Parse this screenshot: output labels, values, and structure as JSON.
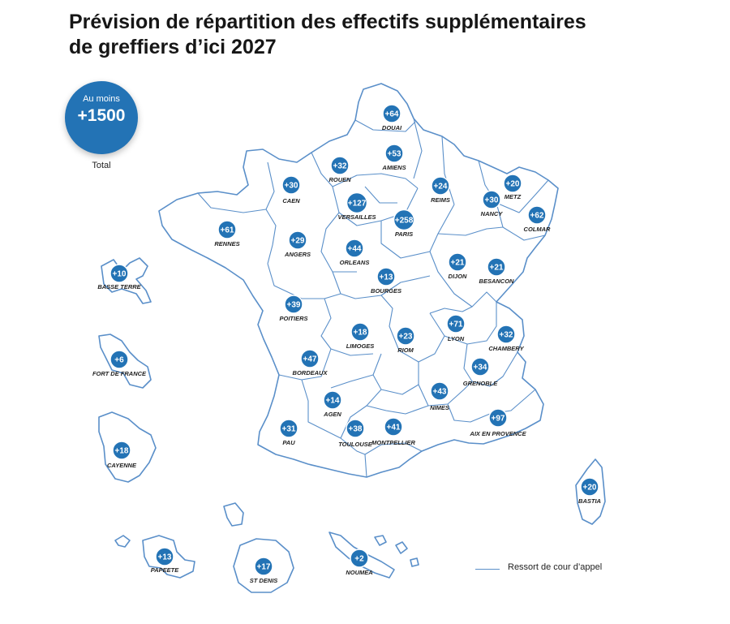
{
  "title": {
    "line1": "Prévision de répartition des effectifs supplémentaires",
    "line2": "de greffiers d’ici 2027"
  },
  "total": {
    "prefix": "Au moins",
    "value": "+1500",
    "caption": "Total"
  },
  "legend": {
    "label": "Ressort de cour d’appel"
  },
  "colors": {
    "badge": "#2373b5",
    "border": "#5a8fc9",
    "title": "#161616"
  },
  "courts": [
    {
      "name": "DOUAI",
      "value": "+64"
    },
    {
      "name": "AMIENS",
      "value": "+53"
    },
    {
      "name": "ROUEN",
      "value": "+32"
    },
    {
      "name": "CAEN",
      "value": "+30"
    },
    {
      "name": "VERSAILLES",
      "value": "+127"
    },
    {
      "name": "REIMS",
      "value": "+24"
    },
    {
      "name": "METZ",
      "value": "+20"
    },
    {
      "name": "NANCY",
      "value": "+30"
    },
    {
      "name": "COLMAR",
      "value": "+62"
    },
    {
      "name": "PARIS",
      "value": "+258"
    },
    {
      "name": "RENNES",
      "value": "+61"
    },
    {
      "name": "ANGERS",
      "value": "+29"
    },
    {
      "name": "ORLEANS",
      "value": "+44"
    },
    {
      "name": "DIJON",
      "value": "+21"
    },
    {
      "name": "BESANCON",
      "value": "+21"
    },
    {
      "name": "BOURGES",
      "value": "+13"
    },
    {
      "name": "POITIERS",
      "value": "+39"
    },
    {
      "name": "LIMOGES",
      "value": "+18"
    },
    {
      "name": "RIOM",
      "value": "+23"
    },
    {
      "name": "LYON",
      "value": "+71"
    },
    {
      "name": "CHAMBERY",
      "value": "+32"
    },
    {
      "name": "BORDEAUX",
      "value": "+47"
    },
    {
      "name": "GRENOBLE",
      "value": "+34"
    },
    {
      "name": "NIMES",
      "value": "+43"
    },
    {
      "name": "AGEN",
      "value": "+14"
    },
    {
      "name": "AIX EN PROVENCE",
      "value": "+97"
    },
    {
      "name": "PAU",
      "value": "+31"
    },
    {
      "name": "TOULOUSE",
      "value": "+38"
    },
    {
      "name": "MONTPELLIER",
      "value": "+41"
    },
    {
      "name": "BASTIA",
      "value": "+20"
    },
    {
      "name": "BASSE TERRE",
      "value": "+10"
    },
    {
      "name": "FORT DE FRANCE",
      "value": "+6"
    },
    {
      "name": "CAYENNE",
      "value": "+18"
    },
    {
      "name": "PAPEETE",
      "value": "+13"
    },
    {
      "name": "ST DENIS",
      "value": "+17"
    },
    {
      "name": "NOUMEA",
      "value": "+2"
    }
  ]
}
